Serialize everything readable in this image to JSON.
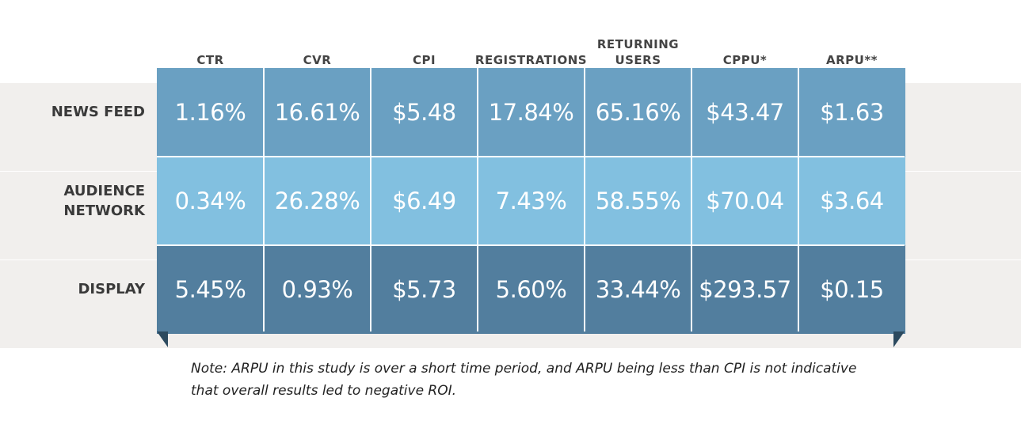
{
  "chart_data": {
    "type": "table",
    "columns": [
      "CTR",
      "CVR",
      "CPI",
      "REGISTRATIONS",
      "RETURNING\nUSERS",
      "CPPU*",
      "ARPU**"
    ],
    "rows": [
      {
        "label": "NEWS FEED",
        "color": "#6aa0c2",
        "values": [
          "1.16%",
          "16.61%",
          "$5.48",
          "17.84%",
          "65.16%",
          "$43.47",
          "$1.63"
        ]
      },
      {
        "label": "AUDIENCE\nNETWORK",
        "color": "#82c0e0",
        "values": [
          "0.34%",
          "26.28%",
          "$6.49",
          "7.43%",
          "58.55%",
          "$70.04",
          "$3.64"
        ]
      },
      {
        "label": "DISPLAY",
        "color": "#527e9e",
        "values": [
          "5.45%",
          "0.93%",
          "$5.73",
          "5.60%",
          "33.44%",
          "$293.57",
          "$0.15"
        ]
      }
    ]
  },
  "note": "Note: ARPU in this study is over a short time period, and ARPU being less than CPI is not indicative that overall results led to negative ROI."
}
